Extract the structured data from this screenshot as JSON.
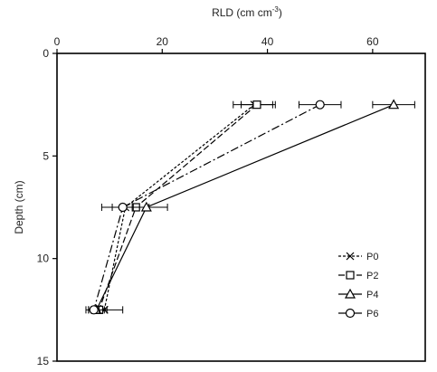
{
  "chart_data": {
    "type": "line",
    "title": "",
    "xlabel": "RLD (cm cm",
    "xlabel_sup": "-3",
    "xlabel_close": ")",
    "ylabel": "Depth  (cm)",
    "xaxis_position": "top",
    "y_inverted": true,
    "xlim": [
      0,
      70
    ],
    "ylim": [
      0,
      15
    ],
    "x_ticks": [
      0,
      20,
      40,
      60
    ],
    "y_ticks": [
      0,
      5,
      10,
      15
    ],
    "grid": false,
    "legend_position": "lower-right",
    "depths": [
      2.5,
      7.5,
      12.5
    ],
    "series": [
      {
        "name": "P0",
        "marker": "x",
        "dash": "3,2",
        "x": [
          37.5,
          13.0,
          9.0
        ],
        "error": [
          4.0,
          4.5,
          3.5
        ]
      },
      {
        "name": "P2",
        "marker": "square",
        "dash": "7,3",
        "x": [
          38.0,
          15.0,
          8.0
        ],
        "error": [
          3.0,
          2.0,
          1.5
        ]
      },
      {
        "name": "P4",
        "marker": "triangle",
        "dash": "",
        "x": [
          64.0,
          17.0,
          7.5
        ],
        "error": [
          4.0,
          4.0,
          1.5
        ]
      },
      {
        "name": "P6",
        "marker": "circle",
        "dash": "9,3,2,3",
        "x": [
          50.0,
          12.5,
          7.0
        ],
        "error": [
          4.0,
          2.0,
          1.0
        ]
      }
    ]
  }
}
